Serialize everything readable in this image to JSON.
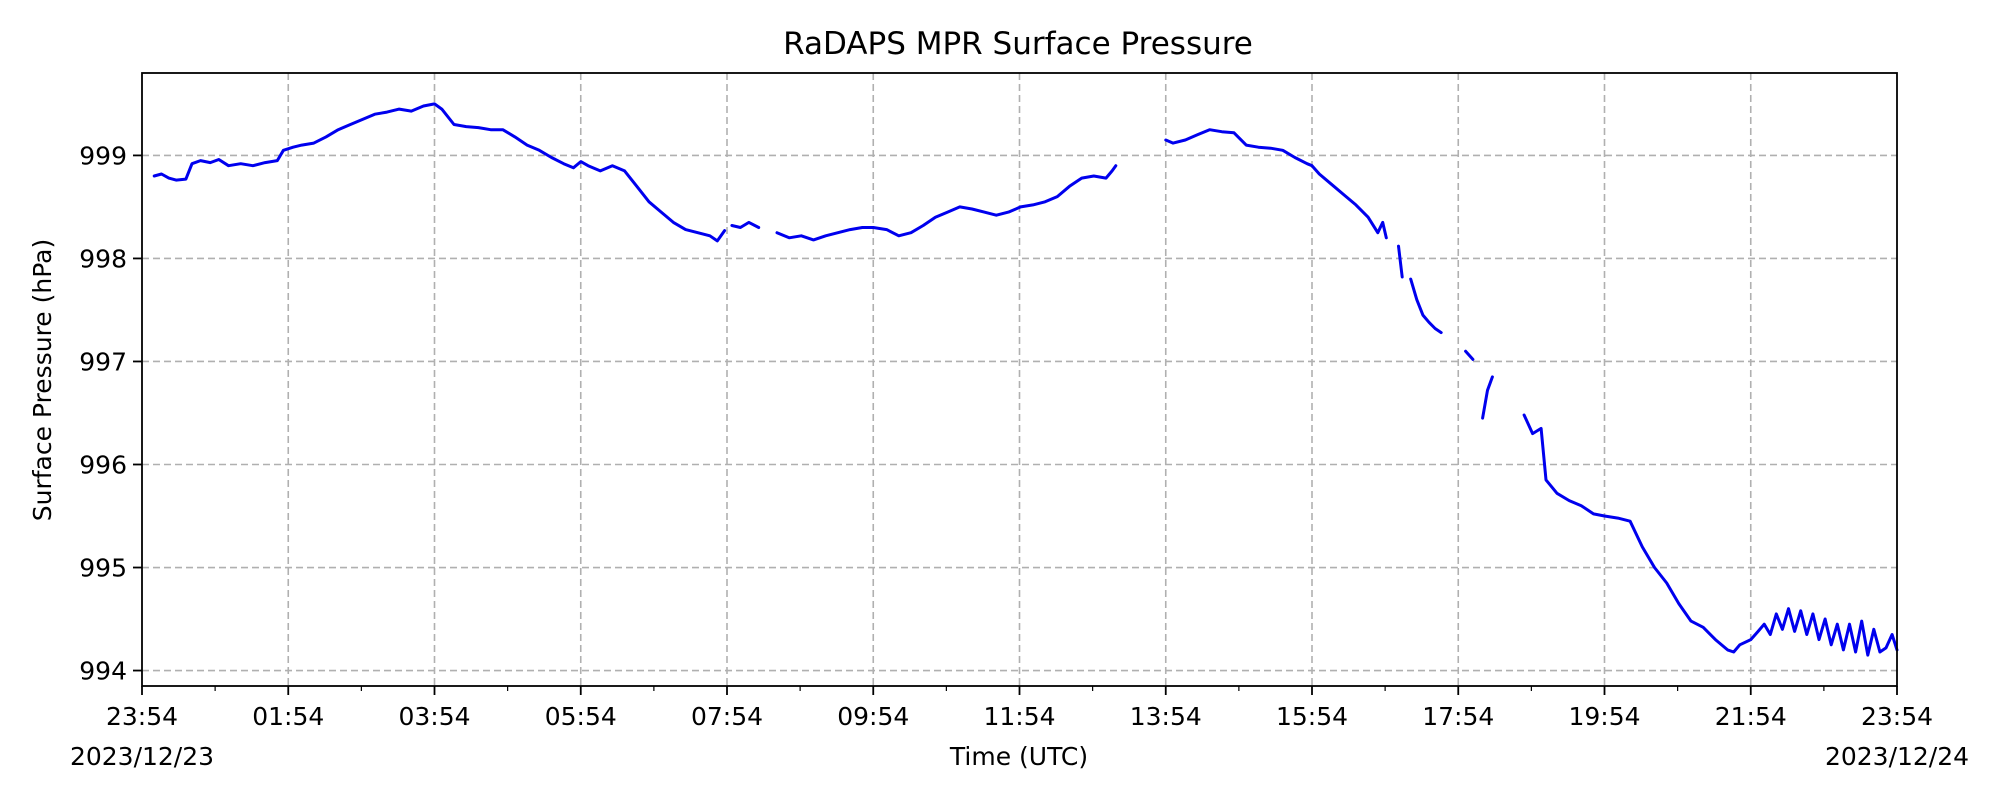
{
  "chart_data": {
    "type": "line",
    "title": "RaDAPS MPR Surface Pressure",
    "xlabel": "Time (UTC)",
    "ylabel": "Surface Pressure (hPa)",
    "x_unit": "time (UTC), 2023/12/23 23:54 to 2023/12/24 23:54",
    "xlim": [
      "2023/12/23 23:54",
      "2023/12/24 23:54"
    ],
    "ylim": [
      993.85,
      999.8
    ],
    "x_ticks": [
      "23:54",
      "01:54",
      "03:54",
      "05:54",
      "07:54",
      "09:54",
      "11:54",
      "13:54",
      "15:54",
      "17:54",
      "19:54",
      "21:54",
      "23:54"
    ],
    "x_tick_dates": [
      "2023/12/23",
      "",
      "",
      "",
      "",
      "",
      "",
      "",
      "",
      "",
      "",
      "",
      "2023/12/24"
    ],
    "y_ticks": [
      994,
      995,
      996,
      997,
      998,
      999
    ],
    "grid": true,
    "series_color": "#0000ee",
    "series": [
      {
        "segments": [
          [
            [
              "00:04",
              998.8
            ],
            [
              "00:10",
              998.82
            ],
            [
              "00:16",
              998.78
            ],
            [
              "00:22",
              998.76
            ],
            [
              "00:30",
              998.77
            ],
            [
              "00:35",
              998.92
            ],
            [
              "00:42",
              998.95
            ],
            [
              "00:50",
              998.93
            ],
            [
              "00:57",
              998.96
            ],
            [
              "01:05",
              998.9
            ],
            [
              "01:15",
              998.92
            ],
            [
              "01:25",
              998.9
            ],
            [
              "01:35",
              998.93
            ],
            [
              "01:45",
              998.95
            ],
            [
              "01:50",
              999.05
            ],
            [
              "01:58",
              999.08
            ],
            [
              "02:05",
              999.1
            ],
            [
              "02:15",
              999.12
            ],
            [
              "02:25",
              999.18
            ],
            [
              "02:35",
              999.25
            ],
            [
              "02:45",
              999.3
            ],
            [
              "02:55",
              999.35
            ],
            [
              "03:05",
              999.4
            ],
            [
              "03:15",
              999.42
            ],
            [
              "03:25",
              999.45
            ],
            [
              "03:35",
              999.43
            ],
            [
              "03:45",
              999.48
            ],
            [
              "03:54",
              999.5
            ],
            [
              "04:00",
              999.45
            ],
            [
              "04:10",
              999.3
            ],
            [
              "04:20",
              999.28
            ],
            [
              "04:30",
              999.27
            ],
            [
              "04:40",
              999.25
            ],
            [
              "04:50",
              999.25
            ],
            [
              "05:00",
              999.18
            ],
            [
              "05:10",
              999.1
            ],
            [
              "05:20",
              999.05
            ],
            [
              "05:30",
              998.98
            ],
            [
              "05:40",
              998.92
            ],
            [
              "05:48",
              998.88
            ],
            [
              "05:54",
              998.94
            ],
            [
              "06:00",
              998.9
            ],
            [
              "06:10",
              998.85
            ],
            [
              "06:20",
              998.9
            ],
            [
              "06:30",
              998.85
            ],
            [
              "06:40",
              998.7
            ],
            [
              "06:50",
              998.55
            ],
            [
              "07:00",
              998.45
            ],
            [
              "07:10",
              998.35
            ],
            [
              "07:20",
              998.28
            ],
            [
              "07:30",
              998.25
            ],
            [
              "07:40",
              998.22
            ],
            [
              "07:46",
              998.17
            ],
            [
              "07:52",
              998.27
            ]
          ],
          [
            [
              "07:58",
              998.32
            ],
            [
              "08:05",
              998.3
            ],
            [
              "08:12",
              998.35
            ],
            [
              "08:20",
              998.3
            ]
          ],
          [
            [
              "08:35",
              998.25
            ],
            [
              "08:45",
              998.2
            ],
            [
              "08:55",
              998.22
            ],
            [
              "09:05",
              998.18
            ],
            [
              "09:15",
              998.22
            ],
            [
              "09:25",
              998.25
            ],
            [
              "09:35",
              998.28
            ],
            [
              "09:45",
              998.3
            ],
            [
              "09:54",
              998.3
            ],
            [
              "10:05",
              998.28
            ],
            [
              "10:15",
              998.22
            ],
            [
              "10:25",
              998.25
            ],
            [
              "10:35",
              998.32
            ],
            [
              "10:45",
              998.4
            ],
            [
              "10:55",
              998.45
            ],
            [
              "11:05",
              998.5
            ],
            [
              "11:15",
              998.48
            ],
            [
              "11:25",
              998.45
            ],
            [
              "11:35",
              998.42
            ],
            [
              "11:45",
              998.45
            ],
            [
              "11:55",
              998.5
            ],
            [
              "12:05",
              998.52
            ],
            [
              "12:15",
              998.55
            ],
            [
              "12:25",
              998.6
            ],
            [
              "12:35",
              998.7
            ],
            [
              "12:45",
              998.78
            ],
            [
              "12:55",
              998.8
            ],
            [
              "13:05",
              998.78
            ],
            [
              "13:10",
              998.85
            ],
            [
              "13:13",
              998.9
            ]
          ],
          [
            [
              "13:54",
              999.15
            ],
            [
              "14:00",
              999.12
            ],
            [
              "14:10",
              999.15
            ],
            [
              "14:20",
              999.2
            ],
            [
              "14:30",
              999.25
            ],
            [
              "14:40",
              999.23
            ],
            [
              "14:50",
              999.22
            ],
            [
              "15:00",
              999.1
            ],
            [
              "15:10",
              999.08
            ],
            [
              "15:20",
              999.07
            ],
            [
              "15:30",
              999.05
            ],
            [
              "15:40",
              998.98
            ],
            [
              "15:50",
              998.92
            ],
            [
              "15:54",
              998.9
            ],
            [
              "16:00",
              998.82
            ],
            [
              "16:10",
              998.72
            ],
            [
              "16:20",
              998.62
            ],
            [
              "16:30",
              998.52
            ],
            [
              "16:40",
              998.4
            ],
            [
              "16:48",
              998.25
            ],
            [
              "16:52",
              998.35
            ],
            [
              "16:55",
              998.2
            ]
          ],
          [
            [
              "17:05",
              998.12
            ],
            [
              "17:08",
              997.82
            ]
          ],
          [
            [
              "17:15",
              997.8
            ],
            [
              "17:20",
              997.6
            ],
            [
              "17:25",
              997.45
            ],
            [
              "17:30",
              997.38
            ],
            [
              "17:35",
              997.32
            ],
            [
              "17:40",
              997.28
            ]
          ],
          [
            [
              "18:00",
              997.1
            ],
            [
              "18:06",
              997.02
            ]
          ],
          [
            [
              "18:14",
              996.45
            ],
            [
              "18:18",
              996.72
            ],
            [
              "18:22",
              996.85
            ]
          ],
          [
            [
              "18:48",
              996.48
            ],
            [
              "18:55",
              996.3
            ],
            [
              "19:02",
              996.35
            ],
            [
              "19:06",
              995.85
            ],
            [
              "19:15",
              995.72
            ],
            [
              "19:25",
              995.65
            ],
            [
              "19:35",
              995.6
            ],
            [
              "19:45",
              995.52
            ],
            [
              "19:54",
              995.5
            ],
            [
              "20:05",
              995.48
            ],
            [
              "20:15",
              995.45
            ],
            [
              "20:25",
              995.2
            ],
            [
              "20:35",
              995.0
            ],
            [
              "20:45",
              994.85
            ],
            [
              "20:55",
              994.65
            ],
            [
              "21:05",
              994.48
            ],
            [
              "21:15",
              994.42
            ],
            [
              "21:25",
              994.3
            ],
            [
              "21:35",
              994.2
            ],
            [
              "21:40",
              994.18
            ],
            [
              "21:45",
              994.25
            ],
            [
              "21:54",
              994.3
            ],
            [
              "22:00",
              994.38
            ],
            [
              "22:05",
              994.45
            ],
            [
              "22:10",
              994.35
            ],
            [
              "22:15",
              994.55
            ],
            [
              "22:20",
              994.4
            ],
            [
              "22:25",
              994.6
            ],
            [
              "22:30",
              994.38
            ],
            [
              "22:35",
              994.58
            ],
            [
              "22:40",
              994.35
            ],
            [
              "22:45",
              994.55
            ],
            [
              "22:50",
              994.3
            ],
            [
              "22:55",
              994.5
            ],
            [
              "23:00",
              994.25
            ],
            [
              "23:05",
              994.45
            ],
            [
              "23:10",
              994.2
            ],
            [
              "23:15",
              994.45
            ],
            [
              "23:20",
              994.18
            ],
            [
              "23:25",
              994.48
            ],
            [
              "23:30",
              994.15
            ],
            [
              "23:35",
              994.4
            ],
            [
              "23:40",
              994.18
            ],
            [
              "23:45",
              994.22
            ],
            [
              "23:50",
              994.35
            ],
            [
              "23:54",
              994.2
            ]
          ]
        ]
      }
    ]
  }
}
